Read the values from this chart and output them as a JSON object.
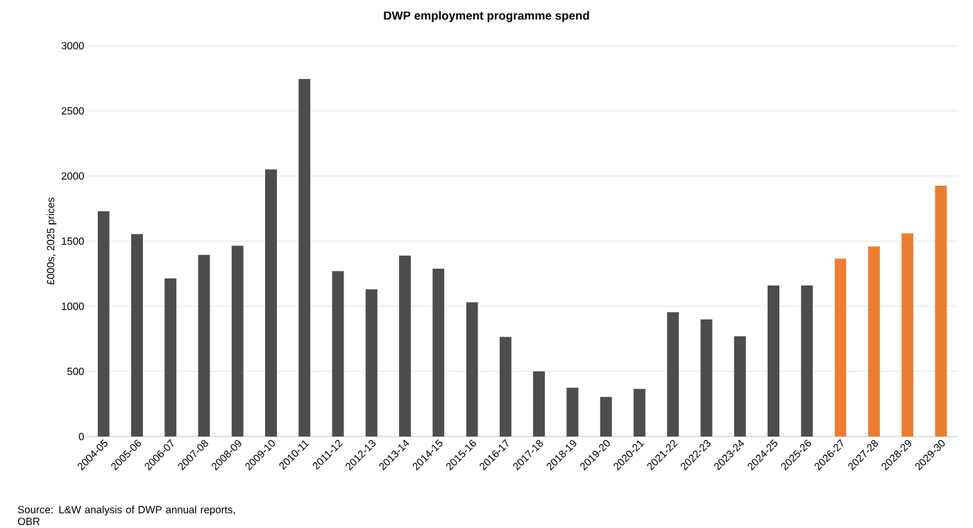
{
  "chart_data": {
    "type": "bar",
    "title": "DWP employment programme spend",
    "ylabel": "£000s, 2025 prices",
    "categories": [
      "2004-05",
      "2005-06",
      "2006-07",
      "2007-08",
      "2008-09",
      "2009-10",
      "2010-11",
      "2011-12",
      "2012-13",
      "2013-14",
      "2014-15",
      "2015-16",
      "2016-17",
      "2017-18",
      "2018-19",
      "2019-20",
      "2020-21",
      "2021-22",
      "2022-23",
      "2023-24",
      "2024-25",
      "2025-26",
      "2026-27",
      "2027-28",
      "2028-29",
      "2029-30"
    ],
    "values": [
      1730,
      1555,
      1215,
      1395,
      1465,
      2050,
      2745,
      1270,
      1130,
      1390,
      1290,
      1030,
      765,
      500,
      375,
      305,
      365,
      955,
      900,
      770,
      1160,
      1160,
      1365,
      1460,
      1560,
      1925
    ],
    "colors": [
      "#4d4d4d",
      "#4d4d4d",
      "#4d4d4d",
      "#4d4d4d",
      "#4d4d4d",
      "#4d4d4d",
      "#4d4d4d",
      "#4d4d4d",
      "#4d4d4d",
      "#4d4d4d",
      "#4d4d4d",
      "#4d4d4d",
      "#4d4d4d",
      "#4d4d4d",
      "#4d4d4d",
      "#4d4d4d",
      "#4d4d4d",
      "#4d4d4d",
      "#4d4d4d",
      "#4d4d4d",
      "#4d4d4d",
      "#4d4d4d",
      "#ed7d31",
      "#ed7d31",
      "#ed7d31",
      "#ed7d31"
    ],
    "ylim": [
      0,
      3000
    ],
    "yticks": [
      0,
      500,
      1000,
      1500,
      2000,
      2500,
      3000
    ],
    "grid": "y",
    "annotations": [
      "Source: L&W analysis of DWP annual reports, OBR"
    ]
  }
}
